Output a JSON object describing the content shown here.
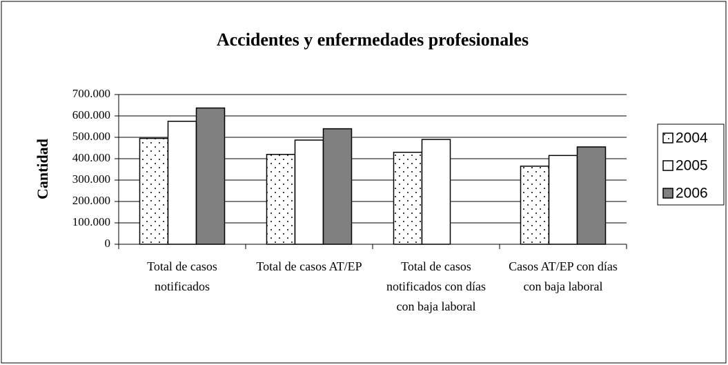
{
  "chart_data": {
    "type": "bar",
    "title": "Accidentes y enfermedades profesionales",
    "y_label": "Cantidad",
    "categories": [
      "Total de casos notificados",
      "Total de casos AT/EP",
      "Total de casos notificados con días con baja laboral",
      "Casos AT/EP con días con baja laboral"
    ],
    "series": [
      {
        "name": "2004",
        "color": "#ffffff",
        "pattern": "dots",
        "values": [
          495000,
          420000,
          430000,
          365000
        ]
      },
      {
        "name": "2005",
        "color": "#ffffff",
        "values": [
          575000,
          487000,
          490000,
          415000
        ]
      },
      {
        "name": "2006",
        "color": "#808080",
        "values": [
          637000,
          540000,
          null,
          455000
        ]
      }
    ],
    "ylim": [
      0,
      700000
    ],
    "yticks": [
      0,
      {
        "value": 100000,
        "label": "100.000"
      },
      {
        "value": 200000,
        "label": "200.000"
      },
      {
        "value": 300000,
        "label": "300.000"
      },
      {
        "value": 400000,
        "label": "400.000"
      },
      {
        "value": 500000,
        "label": "500.000"
      },
      {
        "value": 600000,
        "label": "600.000"
      },
      {
        "value": 700000,
        "label": "700.000"
      }
    ],
    "grid": true,
    "legend": "right"
  }
}
